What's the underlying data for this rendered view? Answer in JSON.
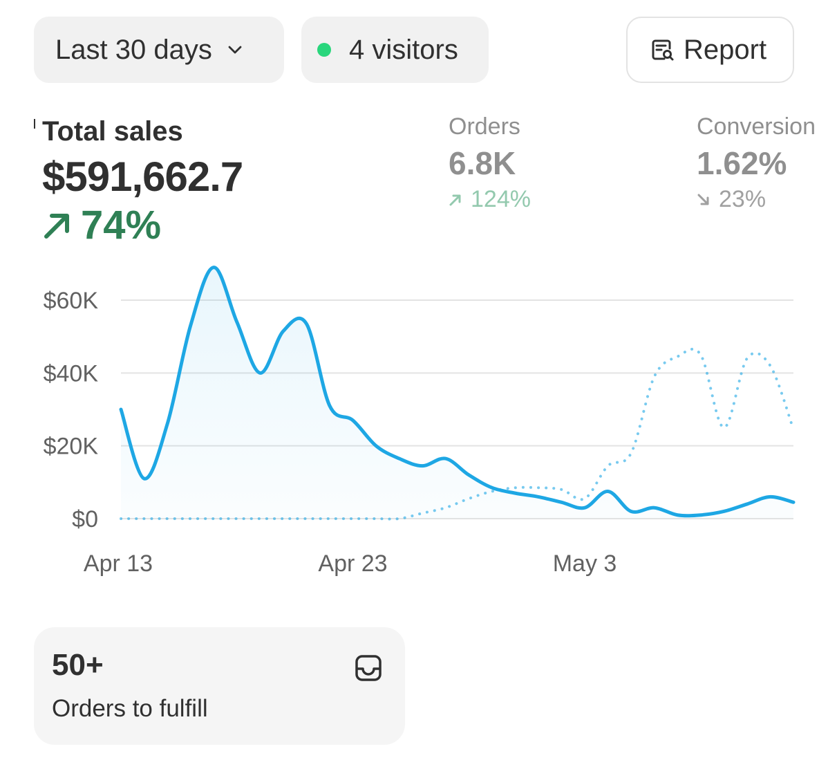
{
  "header": {
    "date_range_label": "Last 30 days",
    "visitors_label": "4 visitors",
    "report_label": "Report",
    "live_dot_color": "#29d67c"
  },
  "metrics": {
    "total_sales": {
      "label": "Total sales",
      "value": "$591,662.7",
      "change": "74%",
      "direction": "up",
      "color": "#2f8055"
    },
    "orders": {
      "label": "Orders",
      "value": "6.8K",
      "change": "124%",
      "direction": "up"
    },
    "conversion": {
      "label": "Conversion",
      "value": "1.62%",
      "change": "23%",
      "direction": "down"
    }
  },
  "chart_data": {
    "type": "line",
    "y_tick_labels": [
      "$0",
      "$20K",
      "$40K",
      "$60K"
    ],
    "y_ticks": [
      0,
      20000,
      40000,
      60000
    ],
    "x_tick_labels": [
      "Apr 13",
      "Apr 23",
      "May 3"
    ],
    "ylim": [
      0,
      60000
    ],
    "line_color": "#1ea7e4",
    "series": [
      {
        "style": "solid",
        "values": [
          30000,
          11000,
          26000,
          53000,
          69000,
          54000,
          40000,
          51500,
          53500,
          31000,
          27000,
          20000,
          16500,
          14500,
          16500,
          12000,
          8500,
          7000,
          6000,
          4500,
          3000,
          7500,
          2000,
          3000,
          1000,
          1000,
          2000,
          4000,
          6000,
          4500
        ]
      },
      {
        "style": "dotted",
        "values": [
          0,
          0,
          0,
          0,
          0,
          0,
          0,
          0,
          0,
          0,
          0,
          0,
          0,
          1500,
          3000,
          5500,
          7500,
          8500,
          8500,
          8000,
          5500,
          14500,
          18000,
          39000,
          44500,
          45000,
          25000,
          44000,
          42000,
          24500
        ]
      }
    ]
  },
  "fulfill": {
    "count": "50+",
    "label": "Orders to fulfill"
  }
}
